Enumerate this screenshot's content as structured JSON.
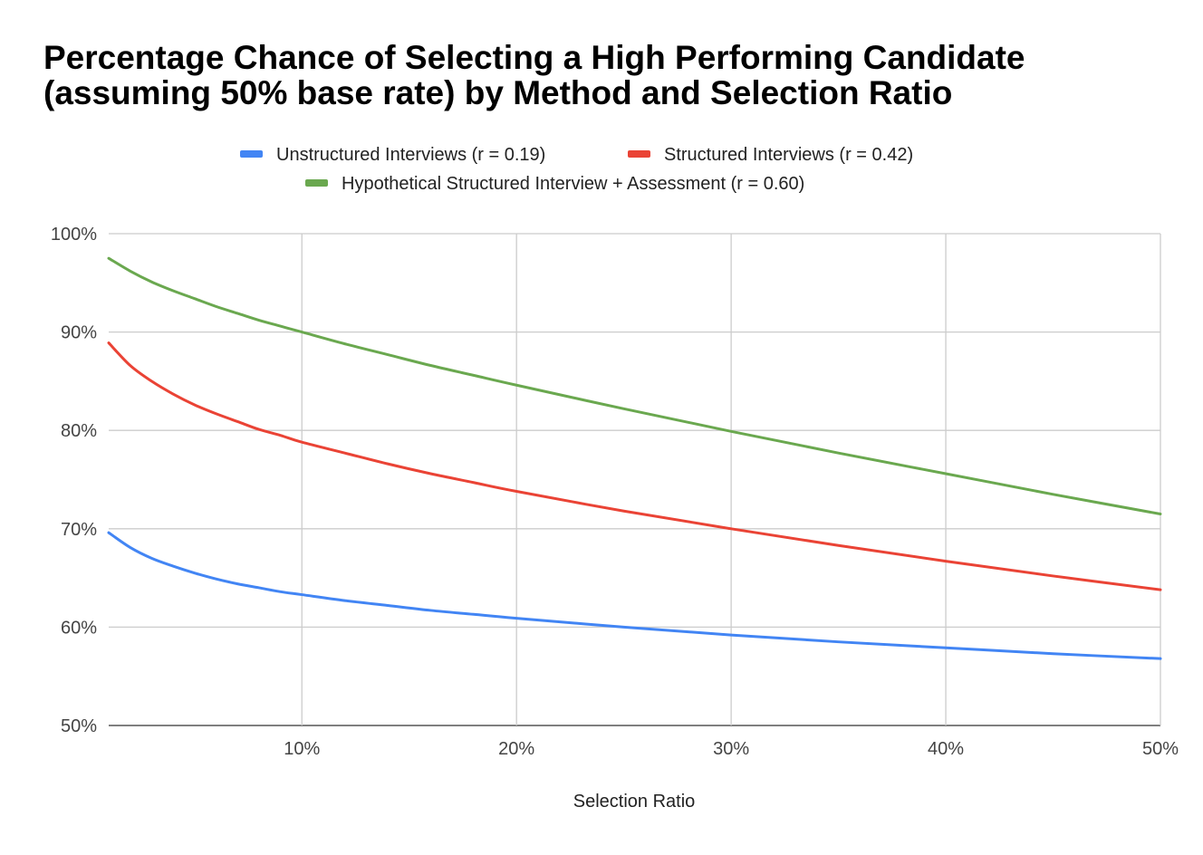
{
  "chart_data": {
    "type": "line",
    "title": "Percentage Chance of Selecting a High Performing Candidate",
    "subtitle": "(assuming 50% base rate) by Method and Selection Ratio",
    "xlabel": "Selection Ratio",
    "ylabel": "",
    "xlim": [
      1,
      50
    ],
    "ylim": [
      50,
      100
    ],
    "x_ticks": [
      10,
      20,
      30,
      40,
      50
    ],
    "x_tick_labels": [
      "10%",
      "20%",
      "30%",
      "40%",
      "50%"
    ],
    "y_ticks": [
      50,
      60,
      70,
      80,
      90,
      100
    ],
    "y_tick_labels": [
      "50%",
      "60%",
      "70%",
      "80%",
      "90%",
      "100%"
    ],
    "grid": true,
    "legend_position": "top",
    "series": [
      {
        "name": "Unstructured Interviews (r = 0.19)",
        "color": "#4285f4",
        "x": [
          1,
          2,
          3,
          4,
          5,
          6,
          7,
          8,
          9,
          10,
          12,
          14,
          16,
          18,
          20,
          25,
          30,
          35,
          40,
          45,
          50
        ],
        "values": [
          69.6,
          68.1,
          67.0,
          66.2,
          65.5,
          64.9,
          64.4,
          64.0,
          63.6,
          63.3,
          62.7,
          62.2,
          61.7,
          61.3,
          60.9,
          60.0,
          59.2,
          58.5,
          57.9,
          57.3,
          56.8
        ]
      },
      {
        "name": "Structured Interviews (r = 0.42)",
        "color": "#ea4335",
        "x": [
          1,
          2,
          3,
          4,
          5,
          6,
          7,
          8,
          9,
          10,
          12,
          14,
          16,
          18,
          20,
          25,
          30,
          35,
          40,
          45,
          50
        ],
        "values": [
          88.9,
          86.6,
          85.0,
          83.7,
          82.6,
          81.7,
          80.9,
          80.1,
          79.5,
          78.8,
          77.7,
          76.6,
          75.6,
          74.7,
          73.8,
          71.8,
          70.0,
          68.3,
          66.7,
          65.2,
          63.8
        ]
      },
      {
        "name": "Hypothetical Structured Interview + Assessment (r = 0.60)",
        "color": "#6aa84f",
        "x": [
          1,
          2,
          3,
          4,
          5,
          6,
          7,
          8,
          9,
          10,
          12,
          14,
          16,
          18,
          20,
          25,
          30,
          35,
          40,
          45,
          50
        ],
        "values": [
          97.5,
          96.2,
          95.1,
          94.2,
          93.4,
          92.6,
          91.9,
          91.2,
          90.6,
          90.0,
          88.8,
          87.7,
          86.6,
          85.6,
          84.6,
          82.2,
          79.9,
          77.7,
          75.6,
          73.5,
          71.5
        ]
      }
    ]
  }
}
